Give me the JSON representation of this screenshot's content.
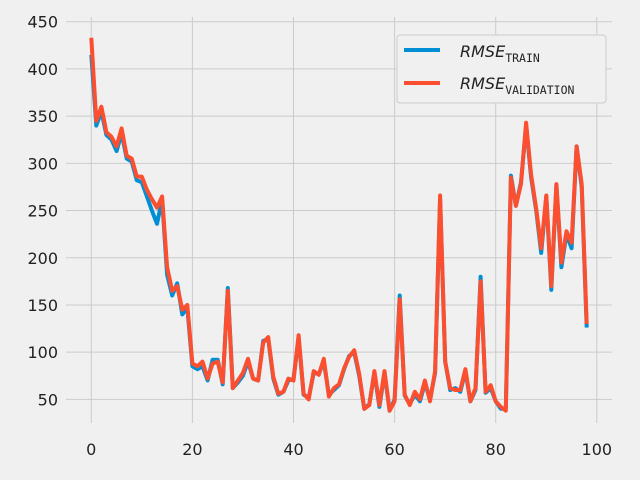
{
  "chart_data": {
    "type": "line",
    "title": "",
    "xlabel": "",
    "ylabel": "",
    "xlim": [
      -5,
      103
    ],
    "ylim": [
      25,
      455
    ],
    "x_ticks": [
      0,
      20,
      40,
      60,
      80,
      100
    ],
    "y_ticks": [
      50,
      100,
      150,
      200,
      250,
      300,
      350,
      400,
      450
    ],
    "grid": true,
    "legend_position": "top-right",
    "x": [
      0,
      1,
      2,
      3,
      4,
      5,
      6,
      7,
      8,
      9,
      10,
      11,
      12,
      13,
      14,
      15,
      16,
      17,
      18,
      19,
      20,
      21,
      22,
      23,
      24,
      25,
      26,
      27,
      28,
      29,
      30,
      31,
      32,
      33,
      34,
      35,
      36,
      37,
      38,
      39,
      40,
      41,
      42,
      43,
      44,
      45,
      46,
      47,
      48,
      49,
      50,
      51,
      52,
      53,
      54,
      55,
      56,
      57,
      58,
      59,
      60,
      61,
      62,
      63,
      64,
      65,
      66,
      67,
      68,
      69,
      70,
      71,
      72,
      73,
      74,
      75,
      76,
      77,
      78,
      79,
      80,
      81,
      82,
      83,
      84,
      85,
      86,
      87,
      88,
      89,
      90,
      91,
      92,
      93,
      94,
      95,
      96,
      97,
      98
    ],
    "series": [
      {
        "name_main": "RMSE",
        "name_sub": "TRAIN",
        "color": "#008fd5",
        "values": [
          415,
          340,
          355,
          330,
          325,
          313,
          332,
          305,
          302,
          282,
          280,
          265,
          250,
          236,
          262,
          182,
          160,
          173,
          140,
          147,
          85,
          82,
          85,
          70,
          92,
          92,
          66,
          168,
          62,
          68,
          75,
          90,
          72,
          70,
          112,
          114,
          72,
          55,
          58,
          70,
          72,
          115,
          55,
          52,
          78,
          77,
          90,
          55,
          60,
          65,
          82,
          96,
          100,
          75,
          40,
          45,
          78,
          42,
          78,
          38,
          50,
          160,
          54,
          45,
          55,
          48,
          67,
          50,
          78,
          262,
          90,
          60,
          62,
          58,
          80,
          48,
          60,
          180,
          57,
          62,
          48,
          40,
          40,
          287,
          255,
          280,
          340,
          285,
          250,
          205,
          265,
          166,
          277,
          190,
          225,
          210,
          318,
          275,
          126
        ],
        "values_note": ""
      },
      {
        "name_main": "RMSE",
        "name_sub": "VALIDATION",
        "color": "#fc4f30",
        "values": [
          433,
          345,
          360,
          333,
          328,
          318,
          337,
          308,
          305,
          286,
          286,
          272,
          262,
          253,
          265,
          190,
          165,
          170,
          145,
          150,
          88,
          85,
          90,
          72,
          88,
          90,
          68,
          165,
          62,
          70,
          78,
          93,
          72,
          70,
          110,
          116,
          74,
          56,
          58,
          72,
          70,
          118,
          56,
          50,
          80,
          76,
          93,
          53,
          62,
          66,
          83,
          95,
          102,
          77,
          40,
          44,
          80,
          44,
          80,
          38,
          48,
          156,
          55,
          44,
          58,
          50,
          70,
          48,
          80,
          266,
          90,
          62,
          60,
          60,
          82,
          48,
          62,
          175,
          58,
          65,
          48,
          42,
          38,
          285,
          255,
          278,
          343,
          288,
          252,
          210,
          266,
          170,
          278,
          195,
          228,
          216,
          318,
          278,
          130
        ]
      }
    ]
  }
}
